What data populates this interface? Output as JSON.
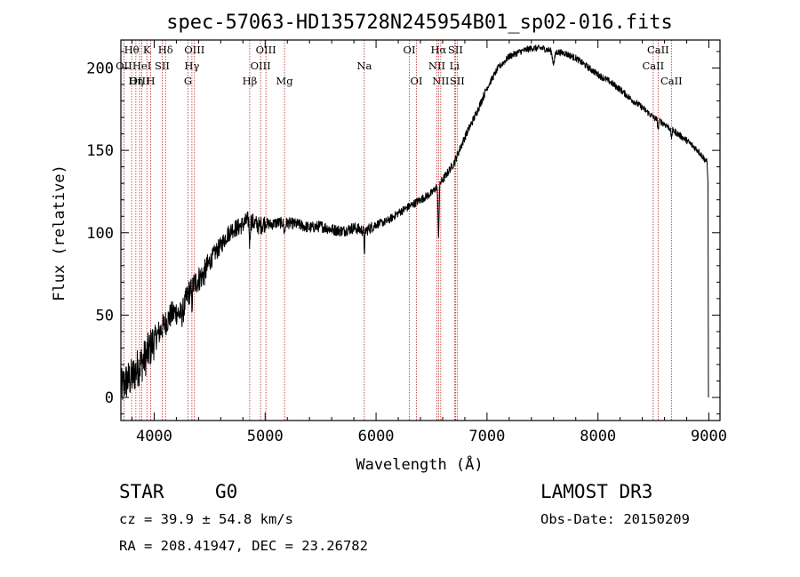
{
  "chart_data": {
    "type": "line",
    "title": "spec-57063-HD135728N245954B01_sp02-016.fits",
    "xlabel": "Wavelength (Å)",
    "ylabel": "Flux (relative)",
    "xlim": [
      3700,
      9100
    ],
    "ylim": [
      -14,
      217
    ],
    "xticks": [
      4000,
      5000,
      6000,
      7000,
      8000,
      9000
    ],
    "yticks": [
      0,
      50,
      100,
      150,
      200
    ],
    "grid": false,
    "line_color": "#000000",
    "marker_color": "#cc2222",
    "spectrum_anchors": [
      [
        3700,
        5
      ],
      [
        3750,
        10
      ],
      [
        3800,
        12
      ],
      [
        3850,
        18
      ],
      [
        3900,
        22
      ],
      [
        3950,
        28
      ],
      [
        4000,
        35
      ],
      [
        4050,
        40
      ],
      [
        4100,
        45
      ],
      [
        4150,
        50
      ],
      [
        4200,
        52
      ],
      [
        4250,
        50
      ],
      [
        4300,
        62
      ],
      [
        4350,
        68
      ],
      [
        4400,
        72
      ],
      [
        4450,
        75
      ],
      [
        4500,
        82
      ],
      [
        4550,
        88
      ],
      [
        4600,
        92
      ],
      [
        4650,
        98
      ],
      [
        4700,
        102
      ],
      [
        4750,
        103
      ],
      [
        4800,
        105
      ],
      [
        4850,
        108
      ],
      [
        4900,
        106
      ],
      [
        4950,
        104
      ],
      [
        5000,
        106
      ],
      [
        5050,
        105
      ],
      [
        5100,
        106
      ],
      [
        5200,
        106
      ],
      [
        5300,
        105
      ],
      [
        5400,
        103
      ],
      [
        5500,
        104
      ],
      [
        5600,
        102
      ],
      [
        5700,
        101
      ],
      [
        5800,
        103
      ],
      [
        5900,
        101
      ],
      [
        6000,
        105
      ],
      [
        6100,
        107
      ],
      [
        6200,
        112
      ],
      [
        6300,
        116
      ],
      [
        6400,
        120
      ],
      [
        6500,
        124
      ],
      [
        6600,
        132
      ],
      [
        6700,
        142
      ],
      [
        6800,
        158
      ],
      [
        6900,
        172
      ],
      [
        7000,
        188
      ],
      [
        7100,
        200
      ],
      [
        7200,
        207
      ],
      [
        7300,
        210
      ],
      [
        7400,
        212
      ],
      [
        7500,
        212
      ],
      [
        7600,
        210
      ],
      [
        7700,
        209
      ],
      [
        7800,
        206
      ],
      [
        7900,
        201
      ],
      [
        8000,
        196
      ],
      [
        8100,
        192
      ],
      [
        8200,
        187
      ],
      [
        8300,
        181
      ],
      [
        8400,
        176
      ],
      [
        8500,
        170
      ],
      [
        8600,
        166
      ],
      [
        8700,
        161
      ],
      [
        8800,
        156
      ],
      [
        8900,
        150
      ],
      [
        8980,
        143
      ]
    ],
    "dips": [
      {
        "wavelength": 6563,
        "depth": 30,
        "width": 5
      },
      {
        "wavelength": 4861,
        "depth": 14,
        "width": 4
      },
      {
        "wavelength": 5895,
        "depth": 12,
        "width": 4
      },
      {
        "wavelength": 4340,
        "depth": 10,
        "width": 4
      },
      {
        "wavelength": 7600,
        "depth": 7,
        "width": 10
      },
      {
        "wavelength": 5175,
        "depth": 6,
        "width": 6
      },
      {
        "wavelength": 8542,
        "depth": 5,
        "width": 5
      },
      {
        "wavelength": 8662,
        "depth": 5,
        "width": 5
      }
    ],
    "lines": [
      {
        "label": "Hθ",
        "wavelength": 3797,
        "row": 1
      },
      {
        "label": "OII",
        "wavelength": 3727,
        "row": 2
      },
      {
        "label": "OIII",
        "wavelength": 3869,
        "row": 3
      },
      {
        "label": "K",
        "wavelength": 3934,
        "row": 1
      },
      {
        "label": "HeI",
        "wavelength": 3889,
        "row": 2
      },
      {
        "label": "Hη",
        "wavelength": 3835,
        "row": 3
      },
      {
        "label": "SII",
        "wavelength": 4072,
        "row": 2
      },
      {
        "label": "H",
        "wavelength": 3969,
        "row": 3
      },
      {
        "label": "Hδ",
        "wavelength": 4102,
        "row": 1
      },
      {
        "label": "OIII",
        "wavelength": 4363,
        "row": 1
      },
      {
        "label": "Hγ",
        "wavelength": 4340,
        "row": 2
      },
      {
        "label": "G",
        "wavelength": 4305,
        "row": 3
      },
      {
        "label": "Hβ",
        "wavelength": 4861,
        "row": 3
      },
      {
        "label": "OIII",
        "wavelength": 5007,
        "row": 1
      },
      {
        "label": "OIII",
        "wavelength": 4959,
        "row": 2
      },
      {
        "label": "Mg",
        "wavelength": 5175,
        "row": 3
      },
      {
        "label": "Na",
        "wavelength": 5894,
        "row": 2
      },
      {
        "label": "OI",
        "wavelength": 6300,
        "row": 1
      },
      {
        "label": "OI",
        "wavelength": 6364,
        "row": 3
      },
      {
        "label": "Hα",
        "wavelength": 6563,
        "row": 1
      },
      {
        "label": "NII",
        "wavelength": 6548,
        "row": 2
      },
      {
        "label": "NII",
        "wavelength": 6583,
        "row": 3
      },
      {
        "label": "SII",
        "wavelength": 6716,
        "row": 1
      },
      {
        "label": "Li",
        "wavelength": 6707,
        "row": 2
      },
      {
        "label": "SII",
        "wavelength": 6731,
        "row": 3
      },
      {
        "label": "CaII",
        "wavelength": 8542,
        "row": 1
      },
      {
        "label": "CaII",
        "wavelength": 8498,
        "row": 2
      },
      {
        "label": "CaII",
        "wavelength": 8662,
        "row": 3
      }
    ]
  },
  "info": {
    "class": "STAR",
    "subclass": "G0",
    "survey": "LAMOST DR3",
    "cz": "cz = 39.9 ± 54.8 km/s",
    "obs_date": "Obs-Date: 20150209",
    "coords": "RA = 208.41947, DEC =  23.26782"
  }
}
